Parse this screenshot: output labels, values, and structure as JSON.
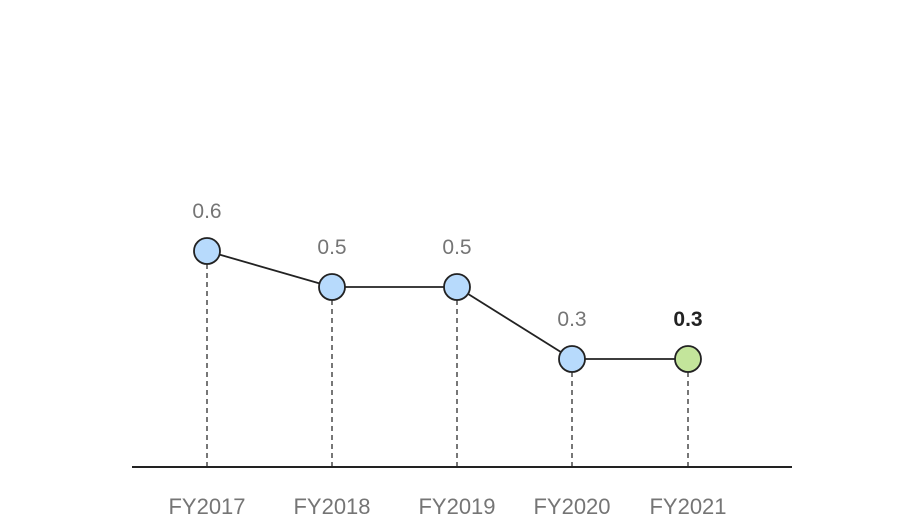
{
  "chart_data": {
    "type": "line",
    "categories": [
      "FY2017",
      "FY2018",
      "FY2019",
      "FY2020",
      "FY2021"
    ],
    "values": [
      0.6,
      0.5,
      0.5,
      0.3,
      0.3
    ],
    "value_labels": [
      "0.6",
      "0.5",
      "0.5",
      "0.3",
      "0.3"
    ],
    "highlight_index": 4,
    "ylim": [
      0,
      1.25
    ],
    "grid": false,
    "drop_lines": true,
    "colors": {
      "point_fill": "#b7dafc",
      "highlight_fill": "#c3e59b",
      "point_stroke": "#222222",
      "line": "#222222",
      "drop_line": "#777777",
      "axis": "#222222",
      "value_label": "#757575",
      "highlight_label": "#222222",
      "tick_label": "#757575"
    }
  }
}
